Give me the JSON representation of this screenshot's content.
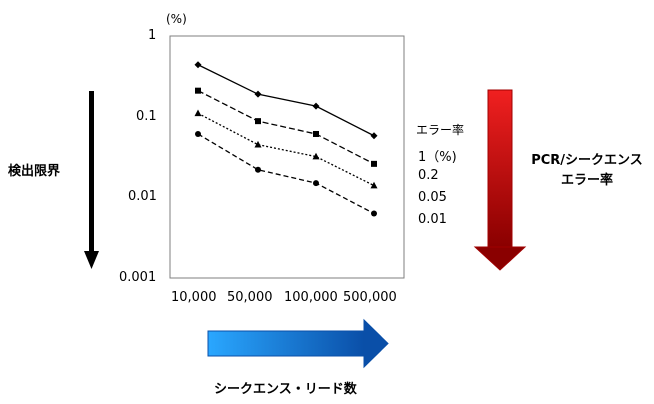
{
  "chart_data": {
    "type": "line",
    "categories": [
      "10,000",
      "50,000",
      "100,000",
      "500,000"
    ],
    "y_scale": "log",
    "ylim": [
      0.001,
      1
    ],
    "y_ticks": [
      "1",
      "0.1",
      "0.01",
      "0.001"
    ],
    "y_unit": "(%)",
    "ylabel": "検出限界",
    "xlabel": "シークエンス・リード数",
    "legend_title": "エラー率",
    "legend_position": "right",
    "series": [
      {
        "name": "1（%)",
        "marker": "diamond",
        "style": "solid",
        "values": [
          0.44,
          0.19,
          0.135,
          0.058
        ]
      },
      {
        "name": "0.2",
        "marker": "square",
        "style": "dashed",
        "values": [
          0.21,
          0.088,
          0.061,
          0.026
        ]
      },
      {
        "name": "0.05",
        "marker": "triangle",
        "style": "dotted",
        "values": [
          0.11,
          0.045,
          0.032,
          0.014
        ]
      },
      {
        "name": "0.01",
        "marker": "circle",
        "style": "dashdot",
        "values": [
          0.061,
          0.022,
          0.015,
          0.0063
        ]
      }
    ],
    "grid": false,
    "annotations": {
      "right_arrow_label_line1": "PCR/シークエンス",
      "right_arrow_label_line2": "エラー率"
    },
    "colors": {
      "blue_arrow": "#1a8fe0",
      "red_arrow": "#d41010",
      "line": "#000000",
      "frame": "#7f7f7f"
    }
  }
}
